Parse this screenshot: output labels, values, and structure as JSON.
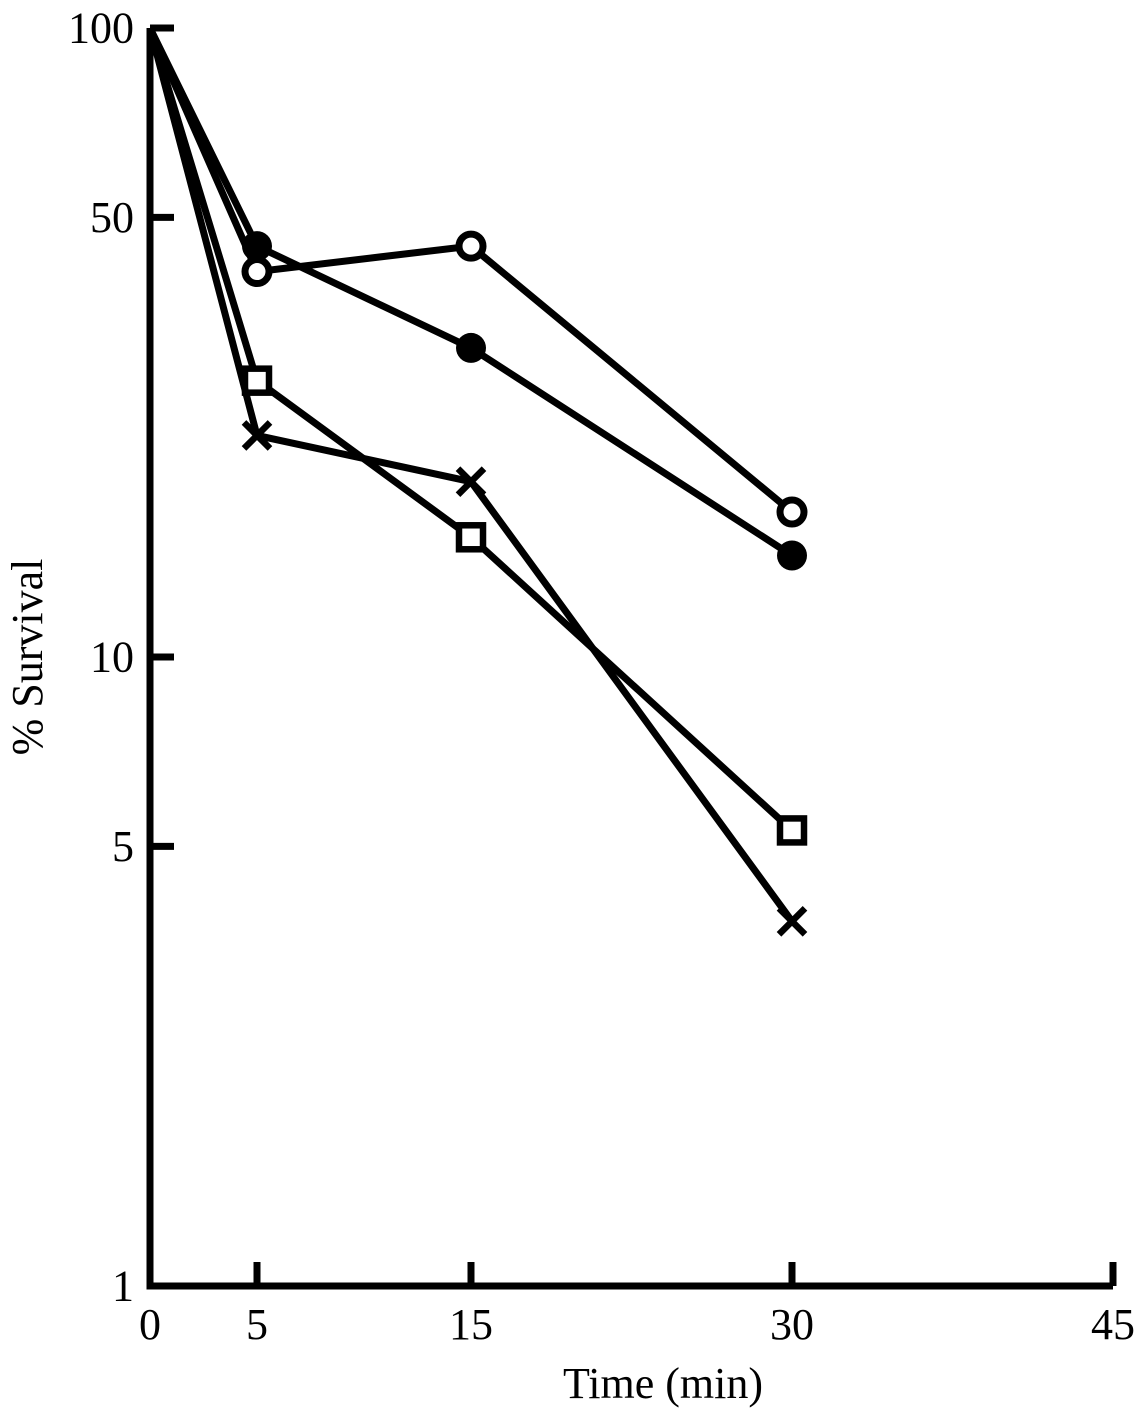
{
  "figure": {
    "background_color": "#ffffff",
    "ink_color": "#000000"
  },
  "chart_data": {
    "type": "line",
    "title": "",
    "xlabel": "Time (min)",
    "ylabel": "% Survival",
    "x_scale": "linear",
    "y_scale": "log",
    "xlim": [
      0,
      45
    ],
    "ylim": [
      1,
      100
    ],
    "x_ticks": [
      0,
      5,
      15,
      30,
      45
    ],
    "y_ticks": [
      100,
      50,
      10,
      5,
      1
    ],
    "grid": false,
    "legend_position": "none",
    "series": [
      {
        "name": "open-circle",
        "marker": "circle-open",
        "color": "#000000",
        "x": [
          0,
          5,
          15,
          30
        ],
        "y": [
          100,
          41,
          45,
          17
        ]
      },
      {
        "name": "filled-circle",
        "marker": "circle-filled",
        "color": "#000000",
        "x": [
          0,
          5,
          15,
          30
        ],
        "y": [
          100,
          45,
          31,
          14.5
        ]
      },
      {
        "name": "open-square",
        "marker": "square-open",
        "color": "#000000",
        "x": [
          0,
          5,
          15,
          30
        ],
        "y": [
          100,
          27.5,
          15.5,
          5.3
        ]
      },
      {
        "name": "x-cross",
        "marker": "x",
        "color": "#000000",
        "x": [
          0,
          5,
          15,
          30
        ],
        "y": [
          100,
          22.5,
          19,
          3.8
        ]
      }
    ]
  }
}
